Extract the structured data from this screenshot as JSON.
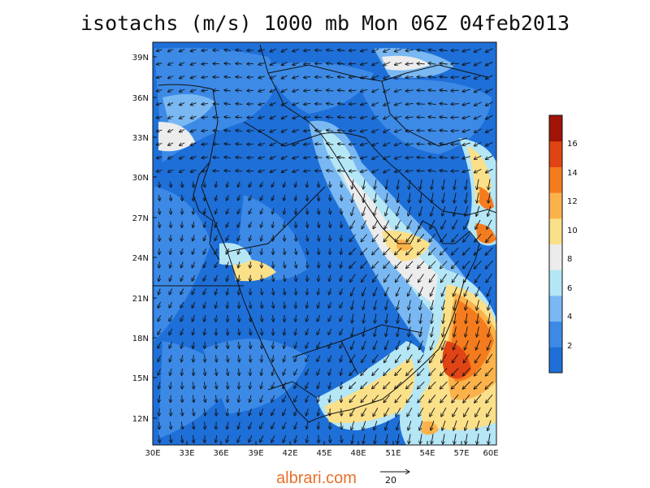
{
  "title": "isotachs (m/s) 1000 mb Mon 06Z 04feb2013",
  "map": {
    "lat_labels": [
      "39N",
      "36N",
      "33N",
      "30N",
      "27N",
      "24N",
      "21N",
      "18N",
      "15N",
      "12N"
    ],
    "lon_labels": [
      "30E",
      "33E",
      "36E",
      "39E",
      "42E",
      "45E",
      "48E",
      "51E",
      "54E",
      "57E",
      "60E"
    ]
  },
  "colorbar": {
    "labels": [
      "2",
      "4",
      "6",
      "8",
      "10",
      "12",
      "14",
      "16"
    ],
    "colors": [
      "#1e6fd8",
      "#3c8ae6",
      "#79b8f2",
      "#b4e6f6",
      "#ececec",
      "#fbe08a",
      "#fbb24a",
      "#f57c1e",
      "#e04414",
      "#a01408"
    ]
  },
  "reference_vector": {
    "label": "20"
  },
  "watermark": "albrari.com"
}
